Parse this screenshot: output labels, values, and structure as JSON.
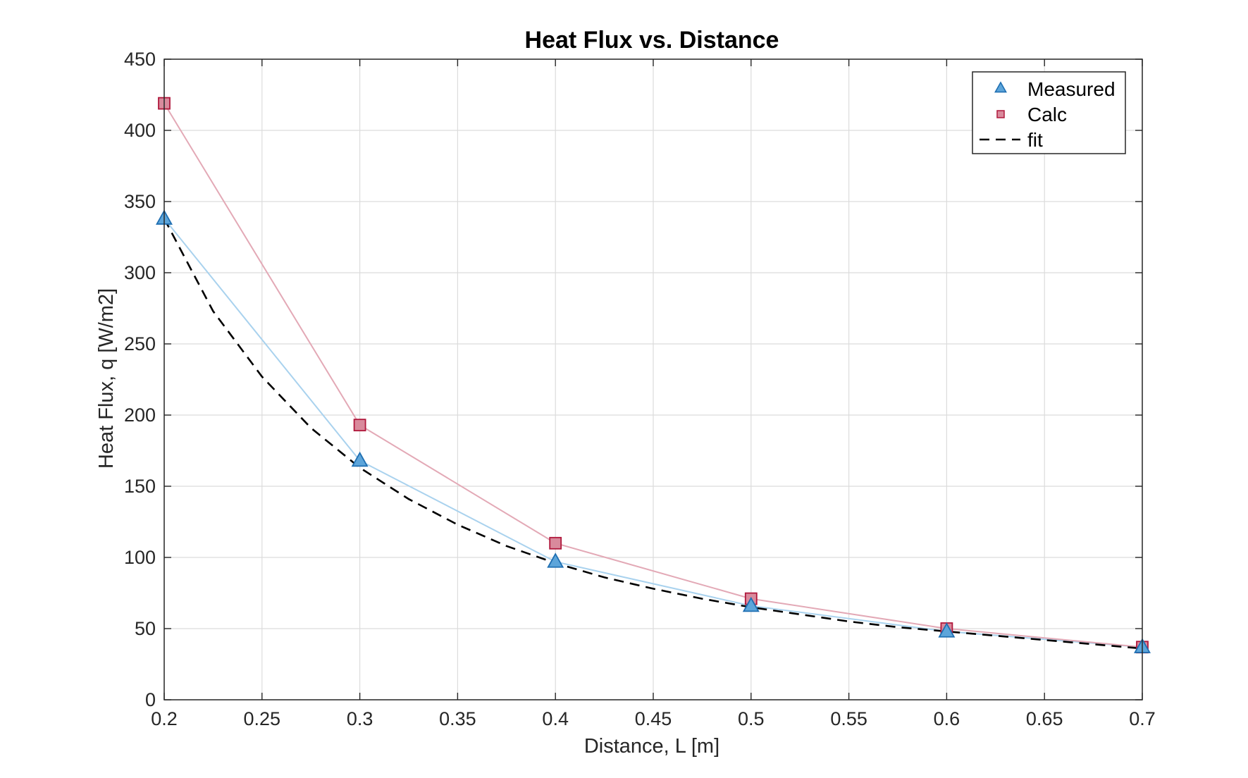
{
  "chart_data": {
    "type": "line",
    "title": "Heat Flux vs. Distance",
    "xlabel": "Distance, L [m]",
    "ylabel": "Heat Flux, q [W/m2]",
    "xlim": [
      0.2,
      0.7
    ],
    "ylim": [
      0,
      450
    ],
    "xticks": [
      0.2,
      0.25,
      0.3,
      0.35,
      0.4,
      0.45,
      0.5,
      0.55,
      0.6,
      0.65,
      0.7
    ],
    "xtick_labels": [
      "0.2",
      "0.25",
      "0.3",
      "0.35",
      "0.4",
      "0.45",
      "0.5",
      "0.55",
      "0.6",
      "0.65",
      "0.7"
    ],
    "yticks": [
      0,
      50,
      100,
      150,
      200,
      250,
      300,
      350,
      400,
      450
    ],
    "ytick_labels": [
      "0",
      "50",
      "100",
      "150",
      "200",
      "250",
      "300",
      "350",
      "400",
      "450"
    ],
    "grid": true,
    "legend_position": "top-right",
    "series": [
      {
        "name": "Measured",
        "marker": "triangle",
        "color": "#5DA5DA",
        "line_color": "#A9D2EE",
        "edge_color": "#1F6FB2",
        "x": [
          0.2,
          0.3,
          0.4,
          0.5,
          0.6,
          0.7
        ],
        "y": [
          338,
          168,
          97,
          66,
          48,
          37
        ]
      },
      {
        "name": "Calc",
        "marker": "square",
        "color": "#D98A9C",
        "line_color": "#E3A9B6",
        "edge_color": "#B0183C",
        "x": [
          0.2,
          0.3,
          0.4,
          0.5,
          0.6,
          0.7
        ],
        "y": [
          419,
          193,
          110,
          71,
          50,
          37
        ]
      },
      {
        "name": "fit",
        "style": "dashed",
        "color": "#000000",
        "x": [
          0.2,
          0.225,
          0.25,
          0.275,
          0.3,
          0.325,
          0.35,
          0.375,
          0.4,
          0.425,
          0.45,
          0.475,
          0.5,
          0.525,
          0.55,
          0.575,
          0.6,
          0.625,
          0.65,
          0.675,
          0.7
        ],
        "y": [
          338,
          273,
          227,
          191,
          163,
          141,
          123,
          108,
          96,
          86,
          78,
          71,
          65,
          60,
          55,
          51,
          48,
          45,
          42,
          39,
          36
        ]
      }
    ]
  }
}
